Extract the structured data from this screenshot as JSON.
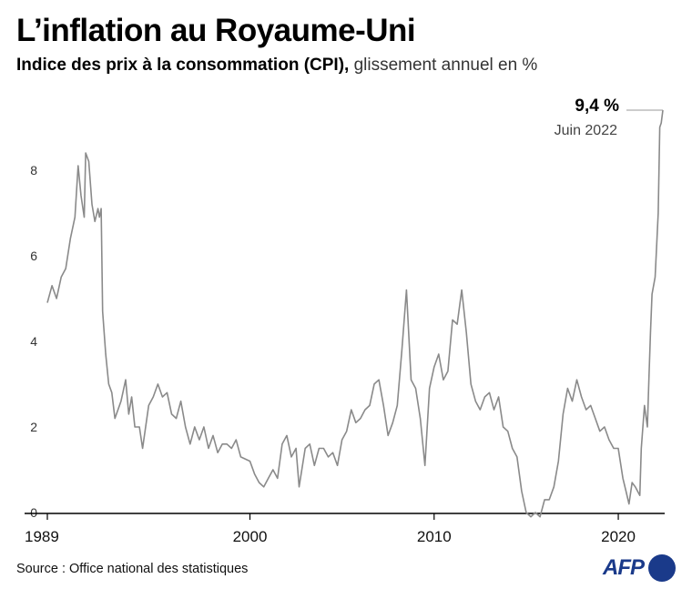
{
  "title": "L’inflation au Royaume-Uni",
  "subtitle_bold": "Indice des prix à la consommation (CPI),",
  "subtitle_rest": " glissement annuel en %",
  "source": "Source : Office national des statistiques",
  "logo": "AFP",
  "colors": {
    "line": "#8a8a8a",
    "axis": "#000000",
    "logo": "#1a3a8a"
  },
  "chart_data": {
    "type": "line",
    "title": "L’inflation au Royaume-Uni",
    "subtitle": "Indice des prix à la consommation (CPI), glissement annuel en %",
    "ylim": [
      0,
      9.4
    ],
    "xlim": [
      1989.0,
      2022.42
    ],
    "yticks": [
      0,
      2,
      4,
      6,
      8
    ],
    "xticks": [
      1989,
      2000,
      2010,
      2020
    ],
    "grid": false,
    "annotation": {
      "value_label": "9,4 %",
      "date_label": "Juin 2022",
      "x": 2022.42,
      "y": 9.4
    },
    "series": [
      {
        "points": [
          [
            1989.0,
            4.9
          ],
          [
            1989.25,
            5.3
          ],
          [
            1989.5,
            5.0
          ],
          [
            1989.75,
            5.5
          ],
          [
            1990.0,
            5.7
          ],
          [
            1990.25,
            6.4
          ],
          [
            1990.5,
            6.9
          ],
          [
            1990.67,
            8.1
          ],
          [
            1990.83,
            7.4
          ],
          [
            1991.0,
            6.9
          ],
          [
            1991.08,
            8.4
          ],
          [
            1991.25,
            8.2
          ],
          [
            1991.42,
            7.2
          ],
          [
            1991.58,
            6.8
          ],
          [
            1991.75,
            7.1
          ],
          [
            1991.83,
            6.9
          ],
          [
            1991.92,
            7.1
          ],
          [
            1992.0,
            4.7
          ],
          [
            1992.17,
            3.7
          ],
          [
            1992.33,
            3.0
          ],
          [
            1992.5,
            2.8
          ],
          [
            1992.67,
            2.2
          ],
          [
            1993.0,
            2.6
          ],
          [
            1993.25,
            3.1
          ],
          [
            1993.42,
            2.3
          ],
          [
            1993.58,
            2.7
          ],
          [
            1993.75,
            2.0
          ],
          [
            1994.0,
            2.0
          ],
          [
            1994.17,
            1.5
          ],
          [
            1994.5,
            2.5
          ],
          [
            1994.75,
            2.7
          ],
          [
            1995.0,
            3.0
          ],
          [
            1995.25,
            2.7
          ],
          [
            1995.5,
            2.8
          ],
          [
            1995.75,
            2.3
          ],
          [
            1996.0,
            2.2
          ],
          [
            1996.25,
            2.6
          ],
          [
            1996.5,
            2.0
          ],
          [
            1996.75,
            1.6
          ],
          [
            1997.0,
            2.0
          ],
          [
            1997.25,
            1.7
          ],
          [
            1997.5,
            2.0
          ],
          [
            1997.75,
            1.5
          ],
          [
            1998.0,
            1.8
          ],
          [
            1998.25,
            1.4
          ],
          [
            1998.5,
            1.6
          ],
          [
            1998.75,
            1.6
          ],
          [
            1999.0,
            1.5
          ],
          [
            1999.25,
            1.7
          ],
          [
            1999.5,
            1.3
          ],
          [
            2000.0,
            1.2
          ],
          [
            2000.25,
            0.9
          ],
          [
            2000.5,
            0.7
          ],
          [
            2000.75,
            0.6
          ],
          [
            2001.0,
            0.8
          ],
          [
            2001.25,
            1.0
          ],
          [
            2001.5,
            0.8
          ],
          [
            2001.75,
            1.6
          ],
          [
            2002.0,
            1.8
          ],
          [
            2002.25,
            1.3
          ],
          [
            2002.5,
            1.5
          ],
          [
            2002.67,
            0.6
          ],
          [
            2003.0,
            1.5
          ],
          [
            2003.25,
            1.6
          ],
          [
            2003.5,
            1.1
          ],
          [
            2003.75,
            1.5
          ],
          [
            2004.0,
            1.5
          ],
          [
            2004.25,
            1.3
          ],
          [
            2004.5,
            1.4
          ],
          [
            2004.75,
            1.1
          ],
          [
            2005.0,
            1.7
          ],
          [
            2005.25,
            1.9
          ],
          [
            2005.5,
            2.4
          ],
          [
            2005.75,
            2.1
          ],
          [
            2006.0,
            2.2
          ],
          [
            2006.25,
            2.4
          ],
          [
            2006.5,
            2.5
          ],
          [
            2006.75,
            3.0
          ],
          [
            2007.0,
            3.1
          ],
          [
            2007.25,
            2.5
          ],
          [
            2007.5,
            1.8
          ],
          [
            2007.75,
            2.1
          ],
          [
            2008.0,
            2.5
          ],
          [
            2008.25,
            3.8
          ],
          [
            2008.5,
            5.2
          ],
          [
            2008.75,
            3.1
          ],
          [
            2009.0,
            2.9
          ],
          [
            2009.25,
            2.2
          ],
          [
            2009.5,
            1.1
          ],
          [
            2009.75,
            2.9
          ],
          [
            2010.0,
            3.4
          ],
          [
            2010.25,
            3.7
          ],
          [
            2010.5,
            3.1
          ],
          [
            2010.75,
            3.3
          ],
          [
            2011.0,
            4.5
          ],
          [
            2011.25,
            4.4
          ],
          [
            2011.5,
            5.2
          ],
          [
            2011.75,
            4.2
          ],
          [
            2012.0,
            3.0
          ],
          [
            2012.25,
            2.6
          ],
          [
            2012.5,
            2.4
          ],
          [
            2012.75,
            2.7
          ],
          [
            2013.0,
            2.8
          ],
          [
            2013.25,
            2.4
          ],
          [
            2013.5,
            2.7
          ],
          [
            2013.75,
            2.0
          ],
          [
            2014.0,
            1.9
          ],
          [
            2014.25,
            1.5
          ],
          [
            2014.5,
            1.3
          ],
          [
            2014.75,
            0.5
          ],
          [
            2015.0,
            0.0
          ],
          [
            2015.25,
            -0.1
          ],
          [
            2015.5,
            0.0
          ],
          [
            2015.75,
            -0.1
          ],
          [
            2016.0,
            0.3
          ],
          [
            2016.25,
            0.3
          ],
          [
            2016.5,
            0.6
          ],
          [
            2016.75,
            1.2
          ],
          [
            2017.0,
            2.3
          ],
          [
            2017.25,
            2.9
          ],
          [
            2017.5,
            2.6
          ],
          [
            2017.75,
            3.1
          ],
          [
            2018.0,
            2.7
          ],
          [
            2018.25,
            2.4
          ],
          [
            2018.5,
            2.5
          ],
          [
            2018.75,
            2.2
          ],
          [
            2019.0,
            1.9
          ],
          [
            2019.25,
            2.0
          ],
          [
            2019.5,
            1.7
          ],
          [
            2019.75,
            1.5
          ],
          [
            2020.0,
            1.5
          ],
          [
            2020.25,
            0.8
          ],
          [
            2020.42,
            0.5
          ],
          [
            2020.58,
            0.2
          ],
          [
            2020.75,
            0.7
          ],
          [
            2020.92,
            0.6
          ],
          [
            2021.17,
            0.4
          ],
          [
            2021.25,
            1.5
          ],
          [
            2021.42,
            2.5
          ],
          [
            2021.58,
            2.0
          ],
          [
            2021.67,
            3.2
          ],
          [
            2021.75,
            4.2
          ],
          [
            2021.83,
            5.1
          ],
          [
            2022.0,
            5.5
          ],
          [
            2022.08,
            6.2
          ],
          [
            2022.17,
            7.0
          ],
          [
            2022.25,
            9.0
          ],
          [
            2022.33,
            9.1
          ],
          [
            2022.42,
            9.4
          ]
        ]
      }
    ]
  }
}
